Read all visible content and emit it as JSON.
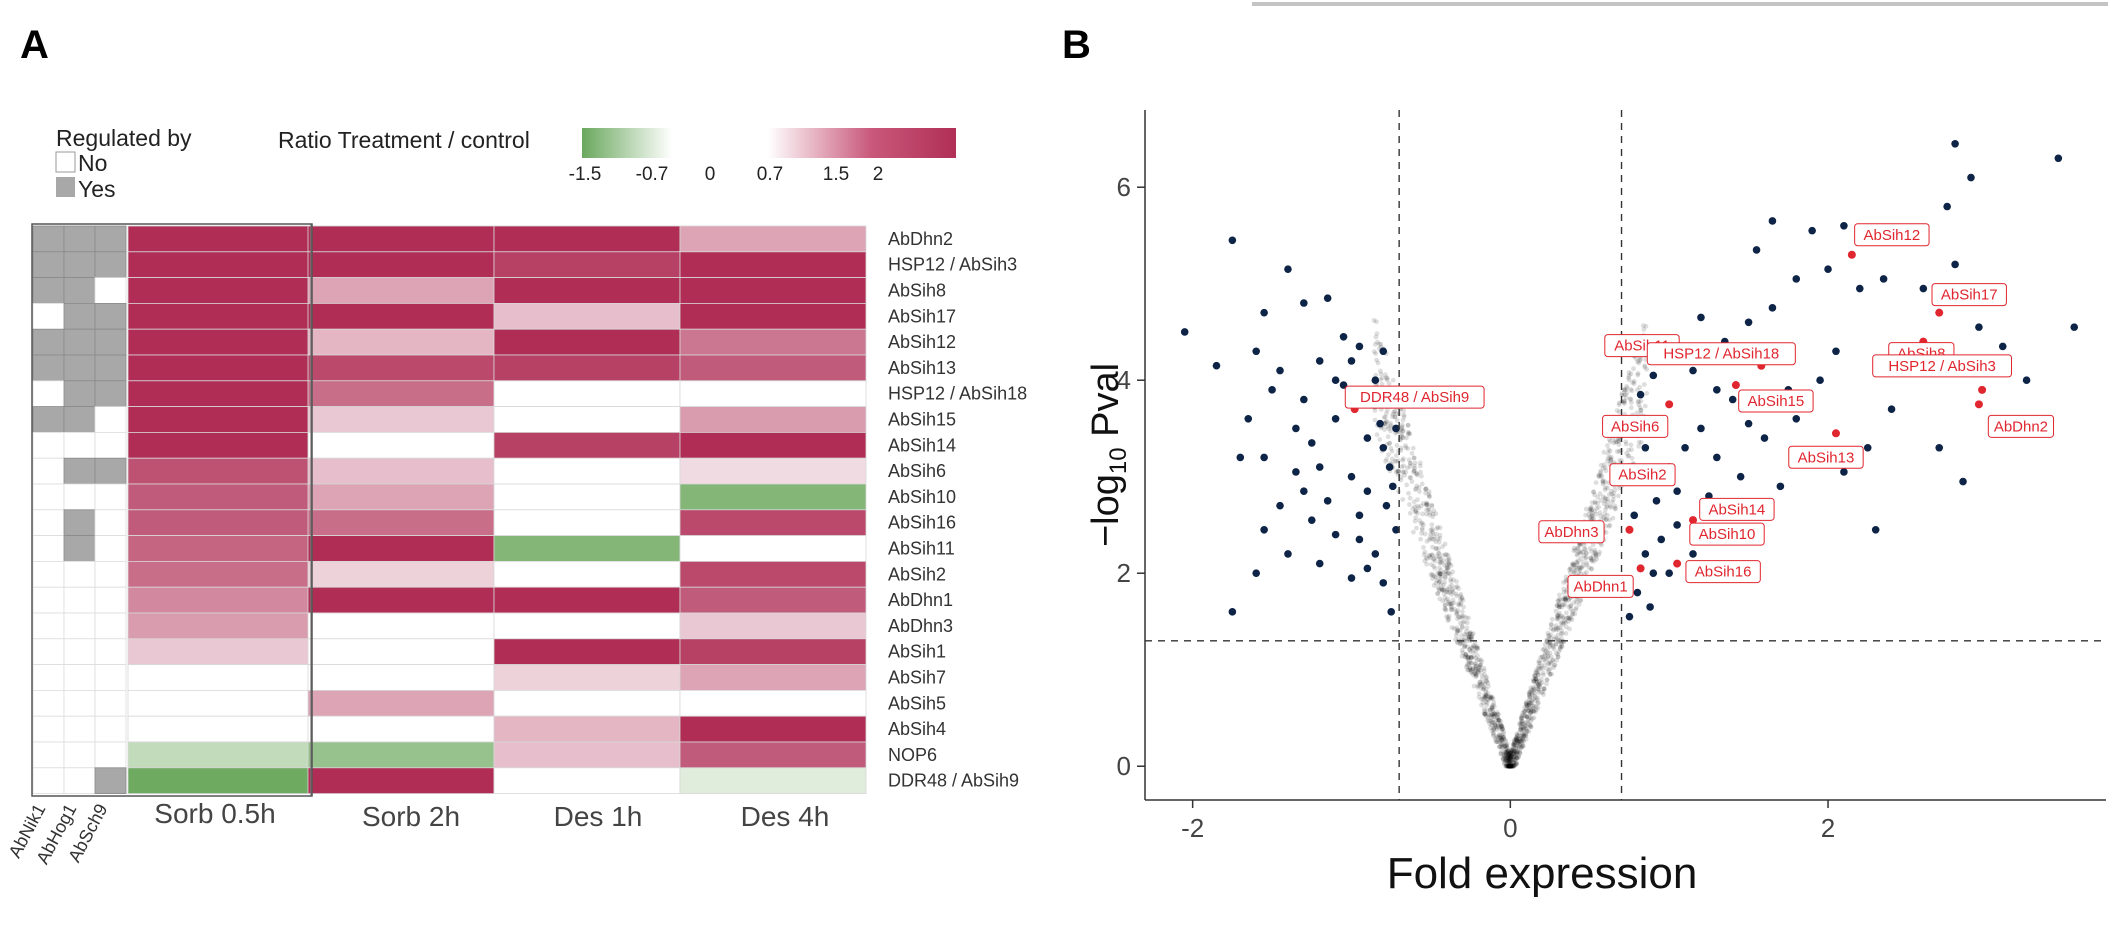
{
  "panel_a": {
    "letter": "A",
    "legend": {
      "regulated_title": "Regulated by",
      "regulated_no": "No",
      "regulated_yes": "Yes",
      "ratio_title": "Ratio Treatment / control",
      "scale_ticks": [
        "-1.5",
        "-0.7",
        "0",
        "0.7",
        "1.5",
        "2"
      ]
    },
    "reg_columns": [
      "AbNik1",
      "AbHog1",
      "AbSch9"
    ],
    "conditions": [
      "Sorb 0.5h",
      "Sorb 2h",
      "Des 1h",
      "Des 4h"
    ]
  },
  "panel_b": {
    "letter": "B",
    "xlabel": "Fold expression",
    "ylabel_prefix": "−log",
    "ylabel_sub": "10",
    "ylabel_suffix": " Pval",
    "xticks": [
      "-2",
      "0",
      "2"
    ],
    "yticks": [
      "0",
      "2",
      "4",
      "6"
    ]
  },
  "chart_data": [
    {
      "type": "heatmap",
      "title": "Ratio Treatment / control",
      "rows": [
        "AbDhn2",
        "HSP12 / AbSih3",
        "AbSih8",
        "AbSih17",
        "AbSih12",
        "AbSih13",
        "HSP12 / AbSih18",
        "AbSih15",
        "AbSih14",
        "AbSih6",
        "AbSih10",
        "AbSih16",
        "AbSih11",
        "AbSih2",
        "AbDhn1",
        "AbDhn3",
        "AbSih1",
        "AbSih7",
        "AbSih5",
        "AbSih4",
        "NOP6",
        "DDR48 / AbSih9"
      ],
      "columns": [
        "Sorb 0.5h",
        "Sorb 2h",
        "Des 1h",
        "Des 4h"
      ],
      "values": [
        [
          2.8,
          2.6,
          2.6,
          1.0
        ],
        [
          2.7,
          2.6,
          2.1,
          2.6
        ],
        [
          2.7,
          1.0,
          2.6,
          2.6
        ],
        [
          2.7,
          2.6,
          0.7,
          2.6
        ],
        [
          2.7,
          0.8,
          2.6,
          1.5
        ],
        [
          2.6,
          2.0,
          2.1,
          1.8
        ],
        [
          2.6,
          1.6,
          0.0,
          0.0
        ],
        [
          2.5,
          0.6,
          0.0,
          1.1
        ],
        [
          2.3,
          0.0,
          2.1,
          2.6
        ],
        [
          1.9,
          0.7,
          0.0,
          0.4
        ],
        [
          1.8,
          1.0,
          0.0,
          -1.2
        ],
        [
          1.8,
          1.6,
          0.0,
          2.0
        ],
        [
          1.7,
          2.6,
          -1.2,
          0.0
        ],
        [
          1.6,
          0.5,
          0.0,
          2.0
        ],
        [
          1.3,
          2.6,
          2.6,
          1.8
        ],
        [
          1.1,
          0.0,
          0.0,
          0.6
        ],
        [
          0.6,
          0.0,
          2.6,
          2.1
        ],
        [
          0.0,
          0.0,
          0.5,
          1.0
        ],
        [
          0.0,
          1.0,
          0.0,
          0.0
        ],
        [
          0.0,
          0.0,
          0.8,
          2.6
        ],
        [
          -0.6,
          -1.0,
          0.7,
          1.8
        ],
        [
          -1.5,
          2.6,
          0.0,
          -0.3
        ]
      ],
      "regulation_columns": [
        "AbNik1",
        "AbHog1",
        "AbSch9"
      ],
      "regulation": [
        [
          1,
          1,
          1
        ],
        [
          1,
          1,
          1
        ],
        [
          1,
          1,
          0
        ],
        [
          0,
          1,
          1
        ],
        [
          1,
          1,
          1
        ],
        [
          1,
          1,
          1
        ],
        [
          0,
          1,
          1
        ],
        [
          1,
          1,
          0
        ],
        [
          0,
          0,
          0
        ],
        [
          0,
          1,
          1
        ],
        [
          0,
          0,
          0
        ],
        [
          0,
          1,
          0
        ],
        [
          0,
          1,
          0
        ],
        [
          0,
          0,
          0
        ],
        [
          0,
          0,
          0
        ],
        [
          0,
          0,
          0
        ],
        [
          0,
          0,
          0
        ],
        [
          0,
          0,
          0
        ],
        [
          0,
          0,
          0
        ],
        [
          0,
          0,
          0
        ],
        [
          0,
          0,
          0
        ],
        [
          0,
          0,
          1
        ]
      ],
      "scale_min": -1.5,
      "scale_max": 2
    },
    {
      "type": "scatter",
      "title": "",
      "xlabel": "Fold expression",
      "ylabel": "-log10 Pval",
      "xlim": [
        -2.3,
        3.75
      ],
      "ylim": [
        -0.35,
        6.8
      ],
      "thresholds": {
        "x": [
          -0.7,
          0.7
        ],
        "y": 1.3
      },
      "labeled_genes": [
        {
          "label": "AbSih12",
          "x": 2.15,
          "y": 5.3
        },
        {
          "label": "AbSih17",
          "x": 2.7,
          "y": 4.7
        },
        {
          "label": "AbSih11",
          "x": 0.98,
          "y": 4.4
        },
        {
          "label": "AbSih8",
          "x": 2.6,
          "y": 4.4
        },
        {
          "label": "HSP12 / AbSih18",
          "x": 1.58,
          "y": 4.15
        },
        {
          "label": "HSP12 / AbSih3",
          "x": 2.97,
          "y": 3.9
        },
        {
          "label": "DDR48 / AbSih9",
          "x": -0.98,
          "y": 3.7
        },
        {
          "label": "AbSih15",
          "x": 1.42,
          "y": 3.95
        },
        {
          "label": "AbSih6",
          "x": 1.0,
          "y": 3.75
        },
        {
          "label": "AbDhn2",
          "x": 2.95,
          "y": 3.75
        },
        {
          "label": "AbSih13",
          "x": 2.05,
          "y": 3.45
        },
        {
          "label": "AbSih2",
          "x": 0.92,
          "y": 3.0
        },
        {
          "label": "AbSih14",
          "x": 1.25,
          "y": 2.6
        },
        {
          "label": "AbDhn3",
          "x": 0.75,
          "y": 2.45
        },
        {
          "label": "AbSih10",
          "x": 1.15,
          "y": 2.55
        },
        {
          "label": "AbSih16",
          "x": 1.05,
          "y": 2.1
        },
        {
          "label": "AbDhn1",
          "x": 0.82,
          "y": 2.05
        }
      ],
      "significant_left": [
        [
          -2.05,
          4.5
        ],
        [
          -1.75,
          5.45
        ],
        [
          -1.4,
          5.15
        ],
        [
          -1.3,
          4.8
        ],
        [
          -1.15,
          4.85
        ],
        [
          -1.55,
          4.7
        ],
        [
          -1.6,
          4.3
        ],
        [
          -1.85,
          4.15
        ],
        [
          -1.45,
          4.1
        ],
        [
          -1.2,
          4.2
        ],
        [
          -1.05,
          4.45
        ],
        [
          -1.0,
          4.2
        ],
        [
          -0.95,
          4.35
        ],
        [
          -0.85,
          4.0
        ],
        [
          -0.8,
          4.3
        ],
        [
          -0.75,
          3.9
        ],
        [
          -1.3,
          3.8
        ],
        [
          -1.1,
          3.6
        ],
        [
          -0.9,
          3.4
        ],
        [
          -0.8,
          3.3
        ],
        [
          -1.65,
          3.6
        ],
        [
          -1.55,
          3.2
        ],
        [
          -1.7,
          3.2
        ],
        [
          -1.35,
          3.05
        ],
        [
          -1.2,
          3.1
        ],
        [
          -1.0,
          3.0
        ],
        [
          -0.9,
          2.85
        ],
        [
          -0.78,
          2.7
        ],
        [
          -1.45,
          2.7
        ],
        [
          -1.25,
          2.55
        ],
        [
          -1.1,
          2.4
        ],
        [
          -0.95,
          2.35
        ],
        [
          -0.85,
          2.2
        ],
        [
          -1.55,
          2.45
        ],
        [
          -1.2,
          2.1
        ],
        [
          -1.0,
          1.95
        ],
        [
          -0.8,
          1.9
        ],
        [
          -0.75,
          1.6
        ],
        [
          -1.6,
          2.0
        ],
        [
          -1.75,
          1.6
        ],
        [
          -1.4,
          2.2
        ],
        [
          -0.9,
          2.05
        ],
        [
          -1.15,
          2.75
        ],
        [
          -1.35,
          3.5
        ],
        [
          -0.88,
          3.75
        ],
        [
          -1.05,
          3.95
        ],
        [
          -0.72,
          3.5
        ],
        [
          -0.76,
          3.1
        ],
        [
          -0.72,
          2.45
        ],
        [
          -0.95,
          2.6
        ],
        [
          -1.5,
          3.9
        ],
        [
          -1.25,
          3.35
        ],
        [
          -1.1,
          4.0
        ],
        [
          -0.82,
          3.55
        ],
        [
          -0.74,
          2.9
        ],
        [
          -1.3,
          2.85
        ]
      ],
      "significant_right": [
        [
          0.75,
          1.55
        ],
        [
          0.8,
          1.8
        ],
        [
          0.9,
          2.0
        ],
        [
          0.85,
          2.2
        ],
        [
          0.95,
          2.35
        ],
        [
          1.05,
          2.5
        ],
        [
          0.78,
          2.6
        ],
        [
          0.92,
          2.75
        ],
        [
          0.75,
          2.95
        ],
        [
          1.0,
          3.1
        ],
        [
          0.85,
          3.3
        ],
        [
          1.1,
          3.3
        ],
        [
          0.8,
          3.5
        ],
        [
          0.95,
          3.6
        ],
        [
          1.2,
          3.5
        ],
        [
          1.3,
          3.2
        ],
        [
          1.45,
          3.0
        ],
        [
          1.25,
          2.8
        ],
        [
          1.4,
          2.6
        ],
        [
          1.55,
          2.4
        ],
        [
          1.7,
          2.9
        ],
        [
          1.6,
          3.4
        ],
        [
          1.8,
          3.6
        ],
        [
          1.9,
          3.2
        ],
        [
          2.1,
          3.05
        ],
        [
          2.25,
          3.3
        ],
        [
          1.75,
          3.9
        ],
        [
          1.95,
          4.0
        ],
        [
          2.05,
          4.3
        ],
        [
          1.3,
          3.9
        ],
        [
          1.15,
          4.1
        ],
        [
          0.9,
          4.05
        ],
        [
          1.0,
          4.3
        ],
        [
          1.35,
          4.4
        ],
        [
          1.5,
          4.6
        ],
        [
          1.65,
          4.75
        ],
        [
          1.8,
          5.05
        ],
        [
          2.0,
          5.15
        ],
        [
          2.2,
          4.95
        ],
        [
          2.35,
          5.05
        ],
        [
          1.55,
          5.35
        ],
        [
          1.65,
          5.65
        ],
        [
          1.9,
          5.55
        ],
        [
          2.1,
          5.6
        ],
        [
          2.6,
          4.95
        ],
        [
          2.8,
          5.2
        ],
        [
          3.0,
          4.95
        ],
        [
          2.75,
          5.8
        ],
        [
          2.9,
          6.1
        ],
        [
          2.8,
          6.45
        ],
        [
          2.95,
          4.55
        ],
        [
          3.1,
          4.35
        ],
        [
          3.45,
          6.3
        ],
        [
          3.55,
          4.55
        ],
        [
          2.55,
          4.1
        ],
        [
          2.8,
          4.15
        ],
        [
          3.25,
          4.0
        ],
        [
          3.05,
          3.55
        ],
        [
          2.7,
          3.3
        ],
        [
          2.85,
          2.95
        ],
        [
          2.3,
          2.45
        ],
        [
          1.4,
          3.8
        ],
        [
          0.82,
          3.85
        ],
        [
          1.2,
          4.65
        ],
        [
          2.4,
          3.7
        ],
        [
          1.05,
          2.85
        ],
        [
          1.15,
          2.2
        ],
        [
          1.5,
          3.55
        ],
        [
          0.88,
          1.65
        ],
        [
          1.0,
          2.0
        ]
      ]
    }
  ]
}
